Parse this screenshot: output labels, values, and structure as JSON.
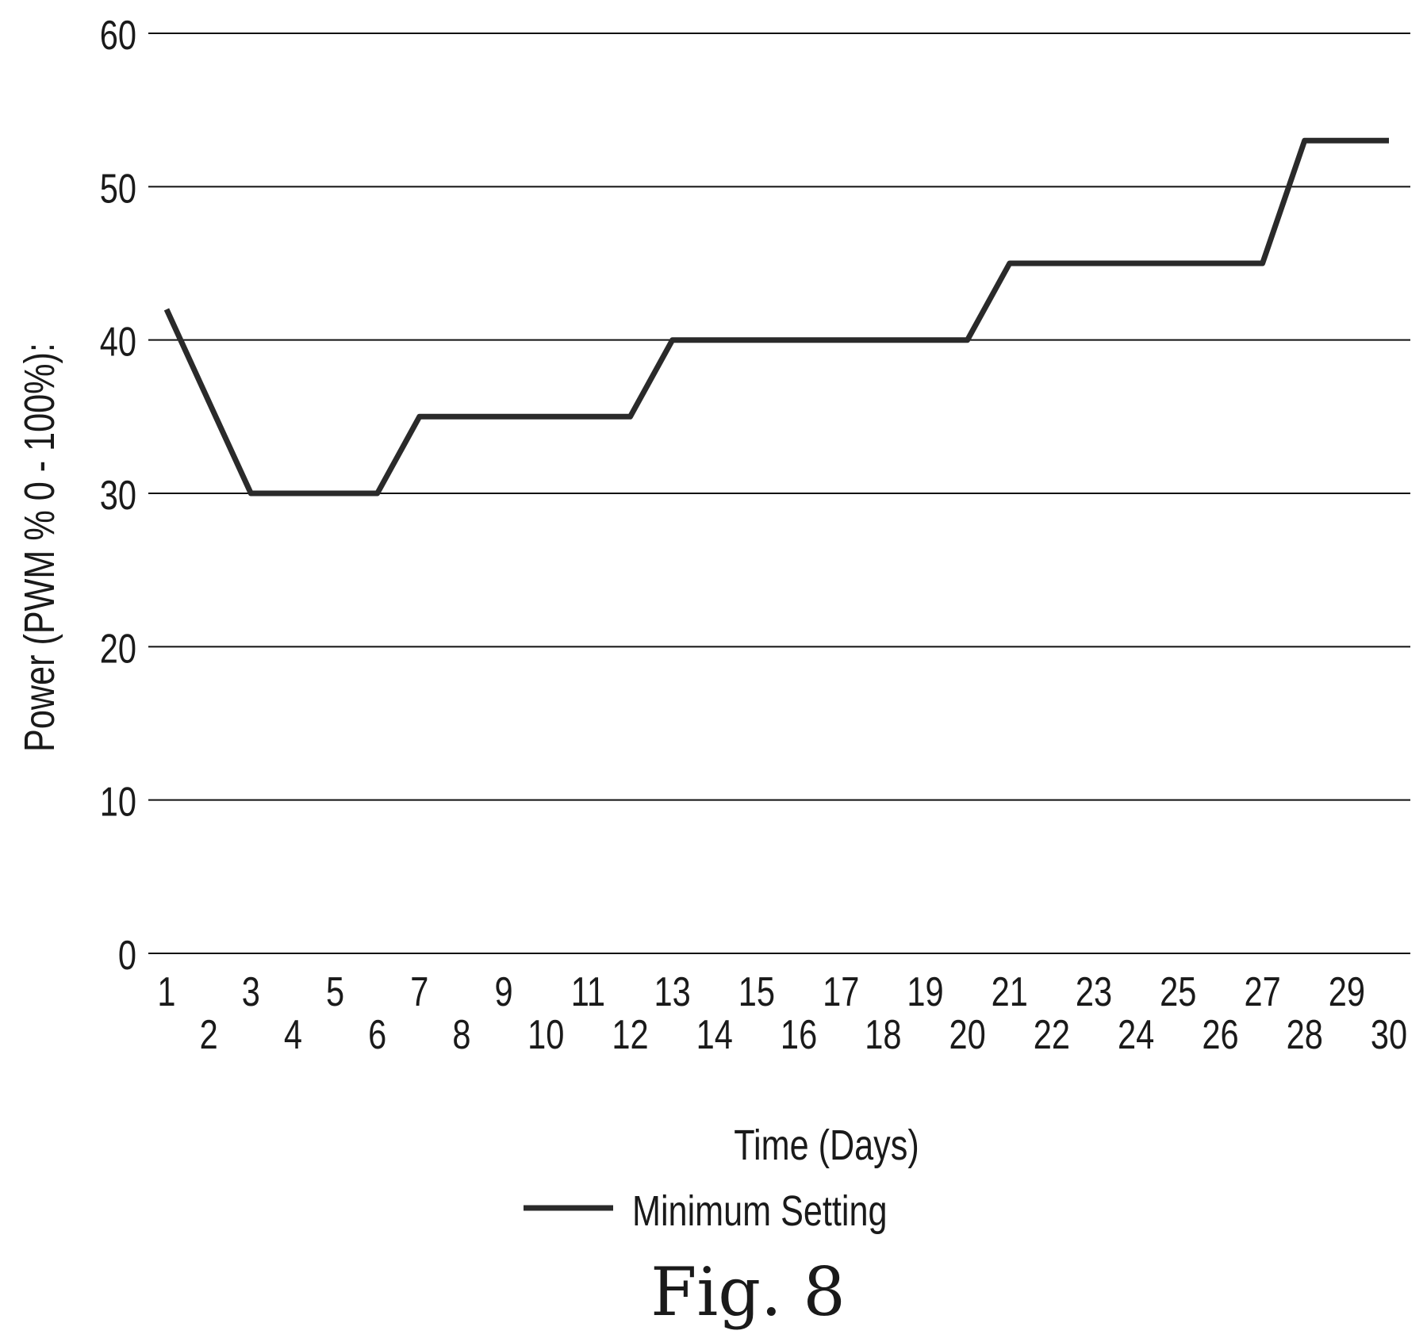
{
  "chart_data": {
    "type": "line",
    "x": [
      1,
      2,
      3,
      4,
      5,
      6,
      7,
      8,
      9,
      10,
      11,
      12,
      13,
      14,
      15,
      16,
      17,
      18,
      19,
      20,
      21,
      22,
      23,
      24,
      25,
      26,
      27,
      28,
      29,
      30
    ],
    "series": [
      {
        "name": "Minimum Setting",
        "values": [
          42,
          36,
          30,
          30,
          30,
          30,
          35,
          35,
          35,
          35,
          35,
          35,
          40,
          40,
          40,
          40,
          40,
          40,
          40,
          40,
          45,
          45,
          45,
          45,
          45,
          45,
          45,
          53,
          53,
          53
        ]
      }
    ],
    "xlabel": "Time (Days)",
    "ylabel": "Power (PWM % 0 - 100%):",
    "ylim": [
      0,
      60
    ],
    "yticks": [
      "0",
      "10",
      "20",
      "30",
      "40",
      "50",
      "60"
    ],
    "xticks": [
      "1",
      "2",
      "3",
      "4",
      "5",
      "6",
      "7",
      "8",
      "9",
      "10",
      "11",
      "12",
      "13",
      "14",
      "15",
      "16",
      "17",
      "18",
      "19",
      "20",
      "21",
      "22",
      "23",
      "24",
      "25",
      "26",
      "27",
      "28",
      "29",
      "30"
    ],
    "grid": true,
    "legend_position": "bottom"
  },
  "figure_caption": "Fig. 8",
  "colors": {
    "line": "#2a2a2a",
    "grid": "#111111"
  }
}
